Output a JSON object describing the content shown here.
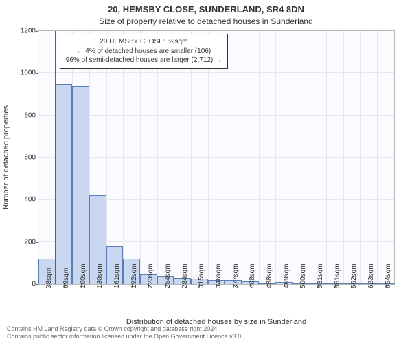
{
  "title_line1": "20, HEMSBY CLOSE, SUNDERLAND, SR4 8DN",
  "title_line2": "Size of property relative to detached houses in Sunderland",
  "chart": {
    "type": "histogram",
    "background_color": "#fbfbff",
    "grid_color": "#e6e6ec",
    "border_color": "#b8b8b8",
    "bar_fill": "#c9d7f1",
    "bar_stroke": "#5b7fb2",
    "ylabel": "Number of detached properties",
    "xlabel": "Distribution of detached houses by size in Sunderland",
    "ylim": [
      0,
      1200
    ],
    "yticks": [
      0,
      200,
      400,
      600,
      800,
      1000,
      1200
    ],
    "xticks": [
      "38sqm",
      "69sqm",
      "100sqm",
      "130sqm",
      "161sqm",
      "192sqm",
      "223sqm",
      "254sqm",
      "284sqm",
      "315sqm",
      "346sqm",
      "377sqm",
      "408sqm",
      "438sqm",
      "469sqm",
      "500sqm",
      "531sqm",
      "561sqm",
      "592sqm",
      "623sqm",
      "654sqm"
    ],
    "values": [
      120,
      950,
      940,
      420,
      180,
      120,
      50,
      38,
      30,
      25,
      20,
      18,
      14,
      2,
      10,
      2,
      2,
      2,
      2,
      2,
      0
    ],
    "marker": {
      "color": "#d03030",
      "bin_index": 1,
      "info_lines": [
        "20 HEMSBY CLOSE: 69sqm",
        "← 4% of detached houses are smaller (106)",
        "96% of semi-detached houses are larger (2,712) →"
      ]
    }
  },
  "footer": {
    "line1": "Contains HM Land Registry data © Crown copyright and database right 2024.",
    "line2": "Contains public sector information licensed under the Open Government Licence v3.0."
  },
  "style": {
    "title_fontsize": 13,
    "subtitle_fontsize": 12,
    "axis_label_fontsize": 11,
    "tick_fontsize": 10,
    "footer_fontsize": 9
  }
}
